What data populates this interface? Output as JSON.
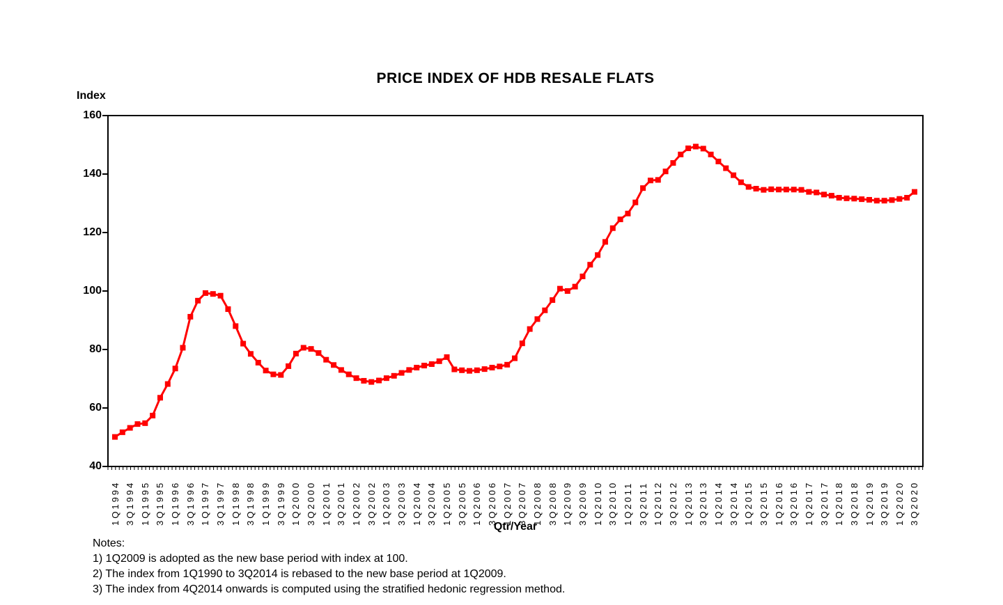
{
  "title": "PRICE INDEX OF HDB RESALE FLATS",
  "y_axis": {
    "label": "Index",
    "ticks": [
      160,
      140,
      120,
      100,
      80,
      60,
      40
    ]
  },
  "x_axis": {
    "label": "Qtr/Year",
    "tick_label_step": 2
  },
  "notes": {
    "heading": "Notes:",
    "items": [
      "1) 1Q2009 is adopted as the new base period with index at 100.",
      "2) The index from 1Q1990 to 3Q2014 is rebased to the new base period at 1Q2009.",
      "3) The index from 4Q2014 onwards is computed using the stratified hedonic regression method."
    ]
  },
  "chart_data": {
    "type": "line",
    "title": "PRICE INDEX OF HDB RESALE FLATS",
    "xlabel": "Qtr/Year",
    "ylabel": "Index",
    "ylim": [
      40,
      160
    ],
    "y_tick_interval": 20,
    "grid": false,
    "legend": "none",
    "line_color": "#ff0000",
    "marker": "square",
    "x": [
      "1Q1994",
      "2Q1994",
      "3Q1994",
      "4Q1994",
      "1Q1995",
      "2Q1995",
      "3Q1995",
      "4Q1995",
      "1Q1996",
      "2Q1996",
      "3Q1996",
      "4Q1996",
      "1Q1997",
      "2Q1997",
      "3Q1997",
      "4Q1997",
      "1Q1998",
      "2Q1998",
      "3Q1998",
      "4Q1998",
      "1Q1999",
      "2Q1999",
      "3Q1999",
      "4Q1999",
      "1Q2000",
      "2Q2000",
      "3Q2000",
      "4Q2000",
      "1Q2001",
      "2Q2001",
      "3Q2001",
      "4Q2001",
      "1Q2002",
      "2Q2002",
      "3Q2002",
      "4Q2002",
      "1Q2003",
      "2Q2003",
      "3Q2003",
      "4Q2003",
      "1Q2004",
      "2Q2004",
      "3Q2004",
      "4Q2004",
      "1Q2005",
      "2Q2005",
      "3Q2005",
      "4Q2005",
      "1Q2006",
      "2Q2006",
      "3Q2006",
      "4Q2006",
      "1Q2007",
      "2Q2007",
      "3Q2007",
      "4Q2007",
      "1Q2008",
      "2Q2008",
      "3Q2008",
      "4Q2008",
      "1Q2009",
      "2Q2009",
      "3Q2009",
      "4Q2009",
      "1Q2010",
      "2Q2010",
      "3Q2010",
      "4Q2010",
      "1Q2011",
      "2Q2011",
      "3Q2011",
      "4Q2011",
      "1Q2012",
      "2Q2012",
      "3Q2012",
      "4Q2012",
      "1Q2013",
      "2Q2013",
      "3Q2013",
      "4Q2013",
      "1Q2014",
      "2Q2014",
      "3Q2014",
      "4Q2014",
      "1Q2015",
      "2Q2015",
      "3Q2015",
      "4Q2015",
      "1Q2016",
      "2Q2016",
      "3Q2016",
      "4Q2016",
      "1Q2017",
      "2Q2017",
      "3Q2017",
      "4Q2017",
      "1Q2018",
      "2Q2018",
      "3Q2018",
      "4Q2018",
      "1Q2019",
      "2Q2019",
      "3Q2019",
      "4Q2019",
      "1Q2020",
      "2Q2020",
      "3Q2020"
    ],
    "values": [
      50.1,
      51.7,
      53.2,
      54.5,
      54.8,
      57.4,
      63.5,
      68.2,
      73.5,
      80.6,
      91.2,
      96.7,
      99.3,
      99.0,
      98.4,
      93.8,
      88.0,
      82.0,
      78.5,
      75.5,
      72.8,
      71.5,
      71.3,
      74.3,
      78.6,
      80.6,
      80.2,
      78.8,
      76.5,
      74.7,
      73.0,
      71.5,
      70.2,
      69.3,
      68.9,
      69.4,
      70.2,
      71.0,
      72.0,
      73.0,
      73.8,
      74.5,
      75.0,
      76.0,
      77.4,
      73.2,
      72.9,
      72.7,
      72.9,
      73.3,
      73.8,
      74.2,
      74.8,
      77.0,
      82.1,
      87.0,
      90.4,
      93.4,
      96.9,
      100.8,
      100.0,
      101.5,
      105.0,
      109.0,
      112.3,
      116.8,
      121.5,
      124.5,
      126.5,
      130.3,
      135.2,
      137.8,
      138.0,
      140.9,
      143.8,
      146.7,
      148.8,
      149.4,
      148.7,
      146.7,
      144.3,
      142.0,
      139.6,
      137.2,
      135.6,
      135.0,
      134.6,
      134.8,
      134.7,
      134.7,
      134.7,
      134.6,
      133.9,
      133.7,
      133.0,
      132.6,
      131.9,
      131.7,
      131.6,
      131.4,
      131.2,
      130.9,
      130.9,
      131.1,
      131.5,
      131.9,
      133.9
    ]
  }
}
